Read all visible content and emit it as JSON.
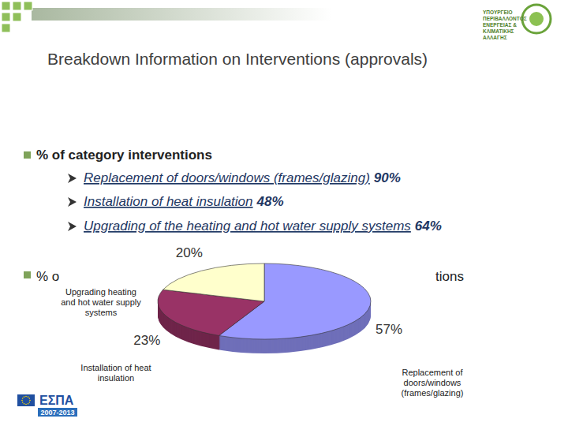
{
  "slide": {
    "logo_lines": [
      "ΥΠΟΥΡΓΕΙΟ",
      "ΠΕΡΙΒΑΛΛΟΝΤΟΣ",
      "ΕΝΕΡΓΕΙΑΣ &",
      "ΚΛΙΜΑΤΙΚΗΣ",
      "ΑΛΛΑΓΗΣ"
    ],
    "title": "Breakdown Information on Interventions (approvals)",
    "bullets": [
      {
        "text": "% of category interventions",
        "items": [
          {
            "text": "Replacement of doors/windows (frames/glazing)",
            "value": "90%"
          },
          {
            "text": "Installation of heat insulation",
            "value": "48%"
          },
          {
            "text": "Upgrading of the heating and hot water supply systems",
            "value": "64%"
          }
        ]
      },
      {
        "text_fragments": [
          "% o",
          "tions"
        ]
      }
    ],
    "footer_logo": {
      "name": "ΕΣΠΑ",
      "years": "2007-2013"
    }
  },
  "chart_data": {
    "type": "pie",
    "categories": [
      "Replacement of doors/windows (frames/glazing)",
      "Installation of heat insulation",
      "Upgrading heating and hot water supply systems"
    ],
    "values": [
      57,
      23,
      20
    ],
    "value_labels": [
      "57%",
      "23%",
      "20%"
    ],
    "colors": [
      "#9999ff",
      "#993366",
      "#ffffcc"
    ],
    "data_labels": true
  }
}
